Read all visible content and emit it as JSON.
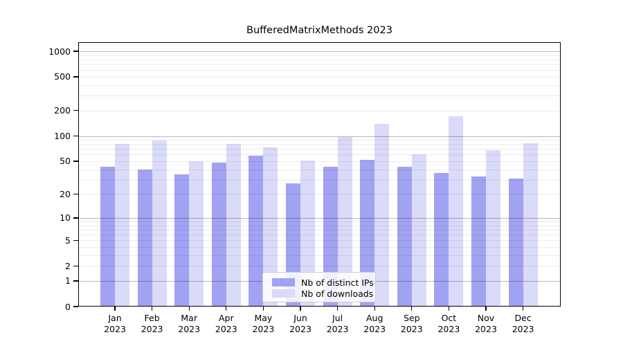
{
  "title": "BufferedMatrixMethods 2023",
  "colors": {
    "ips": "#a2a2f2",
    "downloads": "#dadaf9",
    "axis": "#000000",
    "major_grid": "#b8b8b8",
    "minor_grid": "#ececec",
    "background": "#ffffff",
    "legend_border": "#cccccc"
  },
  "y_axis": {
    "tick_labels": [
      "0",
      "1",
      "2",
      "5",
      "10",
      "20",
      "50",
      "100",
      "200",
      "500",
      "1000"
    ],
    "tick_values": [
      0,
      1,
      2,
      5,
      10,
      20,
      50,
      100,
      200,
      500,
      1000
    ],
    "minor_grid_values": [
      2,
      3,
      4,
      5,
      6,
      7,
      8,
      9,
      20,
      30,
      40,
      50,
      60,
      70,
      80,
      90,
      200,
      300,
      400,
      500,
      600,
      700,
      800,
      900
    ],
    "major_grid_values": [
      1,
      10,
      100,
      1000
    ],
    "scale": "log1p",
    "max": 1000
  },
  "x_axis": {
    "months": [
      "Jan",
      "Feb",
      "Mar",
      "Apr",
      "May",
      "Jun",
      "Jul",
      "Aug",
      "Sep",
      "Oct",
      "Nov",
      "Dec"
    ],
    "year": "2023"
  },
  "legend": {
    "items": [
      {
        "label": "Nb of distinct IPs",
        "color_key": "ips"
      },
      {
        "label": "Nb of downloads",
        "color_key": "downloads"
      }
    ]
  },
  "chart_data": {
    "type": "bar",
    "title": "BufferedMatrixMethods 2023",
    "categories": [
      "Jan 2023",
      "Feb 2023",
      "Mar 2023",
      "Apr 2023",
      "May 2023",
      "Jun 2023",
      "Jul 2023",
      "Aug 2023",
      "Sep 2023",
      "Oct 2023",
      "Nov 2023",
      "Dec 2023"
    ],
    "series": [
      {
        "name": "Nb of distinct IPs",
        "color": "#a2a2f2",
        "values": [
          43,
          40,
          35,
          48,
          58,
          27,
          43,
          52,
          43,
          36,
          33,
          31
        ]
      },
      {
        "name": "Nb of downloads",
        "color": "#dadaf9",
        "values": [
          80,
          88,
          50,
          80,
          73,
          51,
          97,
          139,
          60,
          170,
          68,
          82
        ]
      }
    ],
    "xlabel": "",
    "ylabel": "",
    "yscale": "log1p",
    "ylim": [
      0,
      1000
    ],
    "yticks": [
      0,
      1,
      2,
      5,
      10,
      20,
      50,
      100,
      200,
      500,
      1000
    ],
    "grid": true,
    "legend_position": "lower center"
  }
}
